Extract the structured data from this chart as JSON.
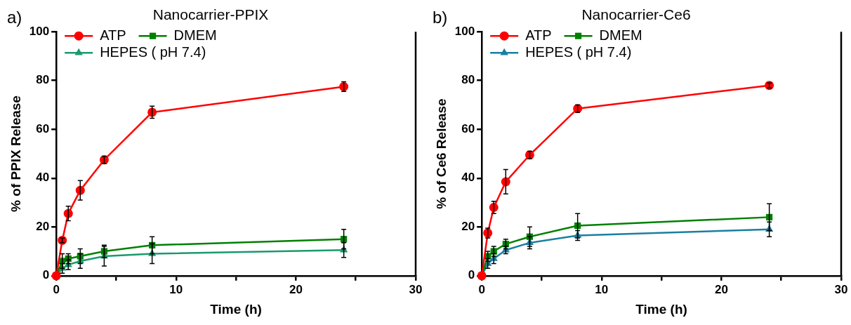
{
  "chart_data": [
    {
      "type": "line",
      "title": "Nanocarrier-PPIX",
      "xlabel": "Time (h)",
      "ylabel": "% of PPIX Release",
      "annotations": [
        "a)"
      ],
      "x": [
        0,
        0.5,
        1,
        2,
        4,
        8,
        24
      ],
      "series": [
        {
          "name": "ATP",
          "color": "#ff0000",
          "marker": "circle",
          "values": [
            0,
            14.5,
            25.5,
            35,
            47.5,
            67,
            77.5
          ],
          "errors": [
            null,
            1,
            3,
            4,
            1.5,
            2.5,
            2
          ]
        },
        {
          "name": "DMEM",
          "color": "#008000",
          "marker": "square",
          "values": [
            0,
            6,
            7,
            8,
            10,
            12.5,
            15
          ],
          "errors": [
            null,
            3,
            2,
            3,
            2.5,
            3.5,
            4
          ]
        },
        {
          "name": "HEPES ( pH 7.4)",
          "color": "#1a9a6c",
          "marker": "triangle",
          "values": [
            0,
            3,
            4.5,
            6,
            8,
            9,
            10.5
          ],
          "errors": [
            null,
            2,
            2,
            3,
            4,
            4,
            3
          ]
        }
      ],
      "xlim": [
        0,
        30
      ],
      "xticks": [
        0,
        {
          "value": 5,
          "label": null
        },
        10,
        {
          "value": 15,
          "label": null
        },
        20,
        {
          "value": 25,
          "label": null
        },
        30
      ],
      "ylim": [
        0,
        100
      ],
      "yticks": [
        0,
        20,
        40,
        60,
        80,
        100
      ],
      "grid": false,
      "legend": "top left"
    },
    {
      "type": "line",
      "title": "Nanocarrier-Ce6",
      "xlabel": "Time (h)",
      "ylabel": "% of Ce6 Release",
      "annotations": [
        "b)"
      ],
      "x": [
        0,
        0.5,
        1,
        2,
        4,
        8,
        24
      ],
      "series": [
        {
          "name": "ATP",
          "color": "#ff0000",
          "marker": "circle",
          "values": [
            0,
            17.5,
            28,
            38.5,
            49.5,
            68.5,
            78
          ],
          "errors": [
            null,
            2,
            2.5,
            5,
            1.5,
            1.5,
            1
          ]
        },
        {
          "name": "DMEM",
          "color": "#008000",
          "marker": "square",
          "values": [
            0,
            8,
            10,
            13,
            16,
            20.5,
            24
          ],
          "errors": [
            null,
            2,
            2,
            2,
            4,
            5,
            5.5
          ]
        },
        {
          "name": "HEPES ( pH 7.4)",
          "color": "#1a7fa0",
          "marker": "triangle",
          "values": [
            0,
            5,
            7,
            10.5,
            13.5,
            16.5,
            19
          ],
          "errors": [
            null,
            2,
            2,
            1.5,
            2.5,
            2,
            3
          ]
        }
      ],
      "xlim": [
        0,
        30
      ],
      "xticks": [
        0,
        {
          "value": 5,
          "label": null
        },
        10,
        {
          "value": 15,
          "label": null
        },
        20,
        {
          "value": 25,
          "label": null
        },
        30
      ],
      "ylim": [
        0,
        100
      ],
      "yticks": [
        0,
        20,
        40,
        60,
        80,
        100
      ],
      "grid": false,
      "legend": "top left"
    }
  ]
}
